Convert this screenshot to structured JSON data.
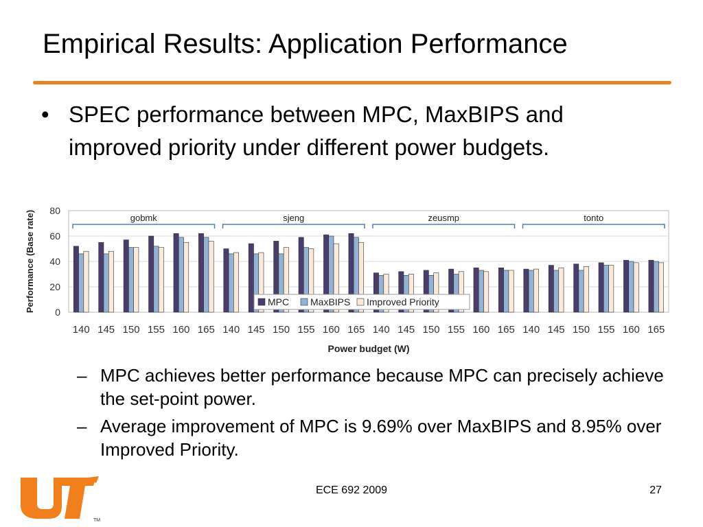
{
  "slide": {
    "title": "Empirical Results: Application Performance",
    "bullet_symbol": "•",
    "bullet": "SPEC performance between MPC, MaxBIPS and improved priority under different power budgets.",
    "dash_symbol": "–",
    "sub_bullets": [
      "MPC achieves better performance because MPC can precisely achieve the set-point power.",
      "Average improvement of MPC is 9.69% over MaxBIPS and 8.95% over Improved Priority."
    ],
    "footer_center": "ECE 692 2009",
    "page_number": "27"
  },
  "colors": {
    "accent": "#f07f1c",
    "mpc": "#4a3d6b",
    "maxbips": "#93b3d6",
    "improved_priority": "#fbe9d9",
    "group_bracket": "#4f7fbf",
    "grid": "#d8d8d8"
  },
  "chart_data": {
    "type": "bar",
    "xlabel": "Power budget (W)",
    "ylabel": "Performance (Base rate)",
    "ylim": [
      0,
      80
    ],
    "yticks": [
      0,
      20,
      40,
      60,
      80
    ],
    "grid": true,
    "legend": "bottom-left",
    "groups": [
      {
        "name": "gobmk",
        "categories": [
          "140",
          "145",
          "150",
          "155",
          "160",
          "165"
        ],
        "values": {
          "mpc": [
            52,
            55,
            57,
            60,
            62,
            62
          ],
          "maxbips": [
            46,
            46,
            51,
            52,
            59,
            59
          ],
          "improved_priority": [
            48,
            48,
            51,
            51,
            55,
            56
          ]
        }
      },
      {
        "name": "sjeng",
        "categories": [
          "140",
          "145",
          "150",
          "155",
          "160",
          "165"
        ],
        "values": {
          "mpc": [
            50,
            54,
            56,
            59,
            61,
            62
          ],
          "maxbips": [
            46,
            46,
            46,
            51,
            60,
            59
          ],
          "improved_priority": [
            47,
            47,
            51,
            50,
            54,
            55
          ]
        }
      },
      {
        "name": "zeusmp",
        "categories": [
          "140",
          "145",
          "150",
          "155",
          "160",
          "165"
        ],
        "values": {
          "mpc": [
            31,
            32,
            33,
            34,
            35,
            35
          ],
          "maxbips": [
            29,
            29,
            29,
            30,
            33,
            33
          ],
          "improved_priority": [
            30,
            30,
            31,
            32,
            32,
            33
          ]
        }
      },
      {
        "name": "tonto",
        "categories": [
          "140",
          "145",
          "150",
          "155",
          "160",
          "165"
        ],
        "values": {
          "mpc": [
            34,
            37,
            38,
            39,
            41,
            41
          ],
          "maxbips": [
            33,
            33,
            33,
            37,
            40,
            40
          ],
          "improved_priority": [
            34,
            35,
            36,
            37,
            39,
            39
          ]
        }
      }
    ],
    "series": [
      {
        "key": "mpc",
        "name": "MPC"
      },
      {
        "key": "maxbips",
        "name": "MaxBIPS"
      },
      {
        "key": "improved_priority",
        "name": "Improved Priority"
      }
    ]
  }
}
